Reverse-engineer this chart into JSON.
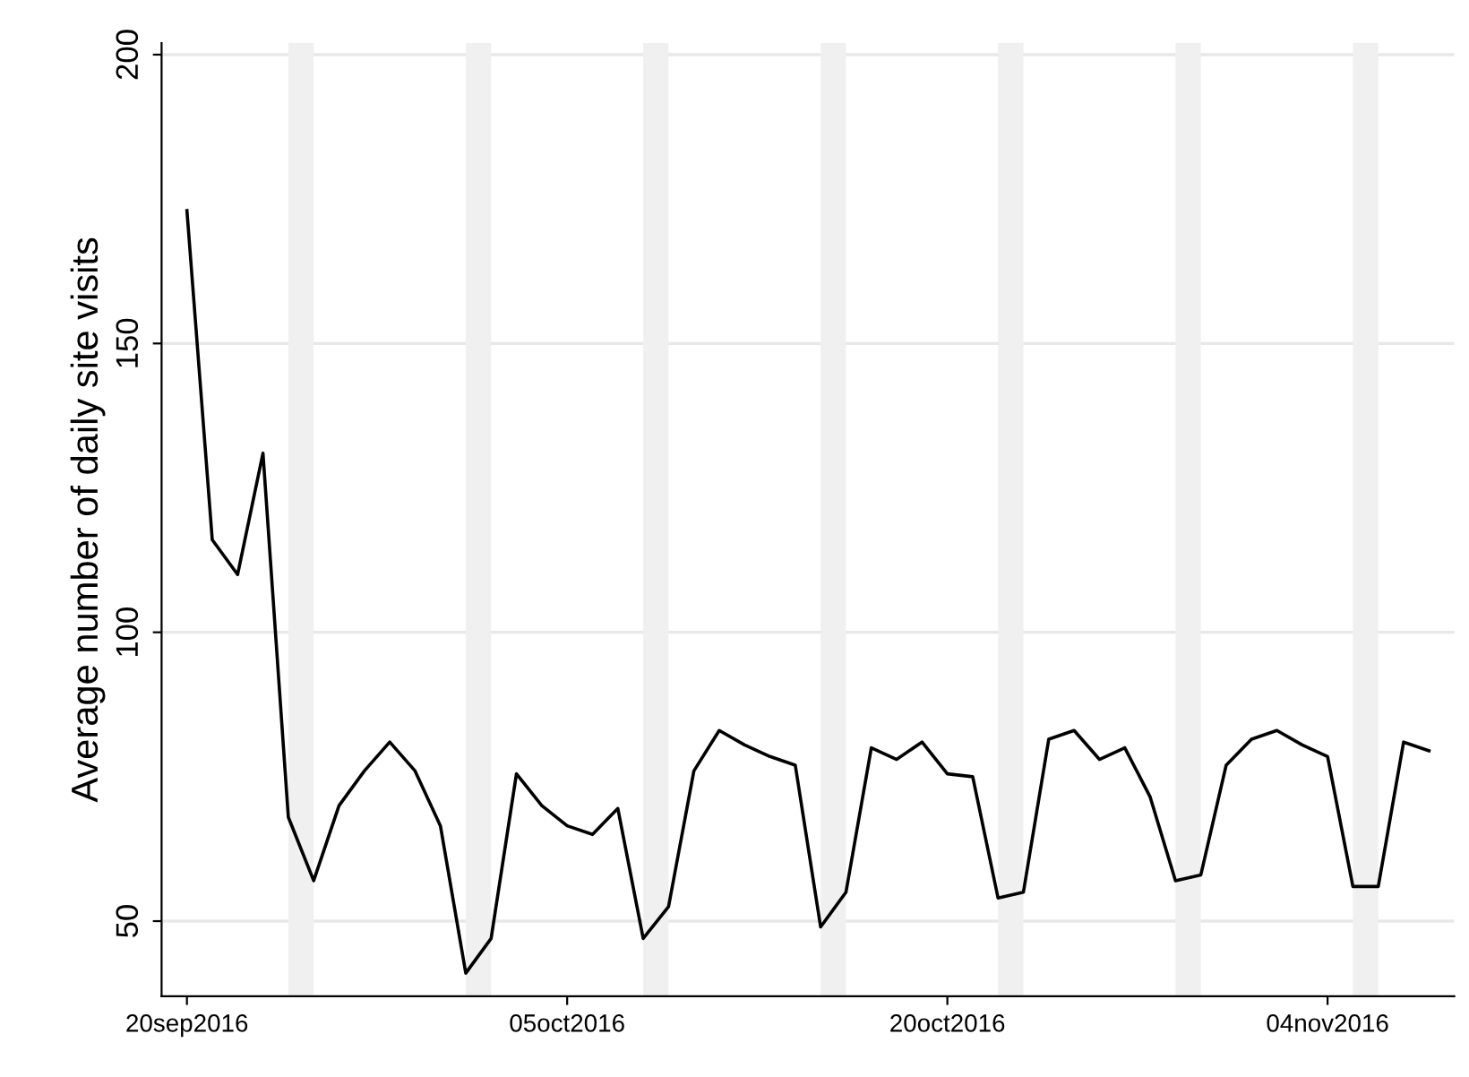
{
  "chart_data": {
    "type": "line",
    "ylabel": "Average number of daily site visits",
    "x": [
      "2016-09-20",
      "2016-09-21",
      "2016-09-22",
      "2016-09-23",
      "2016-09-24",
      "2016-09-25",
      "2016-09-26",
      "2016-09-27",
      "2016-09-28",
      "2016-09-29",
      "2016-09-30",
      "2016-10-01",
      "2016-10-02",
      "2016-10-03",
      "2016-10-04",
      "2016-10-05",
      "2016-10-06",
      "2016-10-07",
      "2016-10-08",
      "2016-10-09",
      "2016-10-10",
      "2016-10-11",
      "2016-10-12",
      "2016-10-13",
      "2016-10-14",
      "2016-10-15",
      "2016-10-16",
      "2016-10-17",
      "2016-10-18",
      "2016-10-19",
      "2016-10-20",
      "2016-10-21",
      "2016-10-22",
      "2016-10-23",
      "2016-10-24",
      "2016-10-25",
      "2016-10-26",
      "2016-10-27",
      "2016-10-28",
      "2016-10-29",
      "2016-10-30",
      "2016-10-31",
      "2016-11-01",
      "2016-11-02",
      "2016-11-03",
      "2016-11-04",
      "2016-11-05",
      "2016-11-06",
      "2016-11-07",
      "2016-11-08"
    ],
    "series": [
      {
        "color": "#000000",
        "values": [
          173,
          116,
          110,
          131,
          68,
          57,
          70,
          76,
          81,
          76,
          66.5,
          41,
          47,
          75.5,
          70,
          66.5,
          65,
          69.5,
          47,
          52.5,
          76,
          83,
          80.5,
          78.5,
          77,
          49,
          55,
          80,
          78,
          81,
          75.5,
          75,
          54,
          55,
          81.5,
          83,
          78,
          80,
          71.5,
          57,
          58,
          77,
          81.5,
          83,
          80.5,
          78.5,
          56,
          56,
          81,
          79.5
        ]
      }
    ],
    "bands": [
      {
        "axis": "x",
        "from": "2016-09-24",
        "to": "2016-09-25",
        "color": "#f0f0f0"
      },
      {
        "axis": "x",
        "from": "2016-10-01",
        "to": "2016-10-02",
        "color": "#f0f0f0"
      },
      {
        "axis": "x",
        "from": "2016-10-08",
        "to": "2016-10-09",
        "color": "#f0f0f0"
      },
      {
        "axis": "x",
        "from": "2016-10-15",
        "to": "2016-10-16",
        "color": "#f0f0f0"
      },
      {
        "axis": "x",
        "from": "2016-10-22",
        "to": "2016-10-23",
        "color": "#f0f0f0"
      },
      {
        "axis": "x",
        "from": "2016-10-29",
        "to": "2016-10-30",
        "color": "#f0f0f0"
      },
      {
        "axis": "x",
        "from": "2016-11-05",
        "to": "2016-11-06",
        "color": "#f0f0f0"
      }
    ],
    "xlim": [
      "2016-09-19",
      "2016-11-09"
    ],
    "xticks": [
      {
        "value": "2016-09-20",
        "label": "20sep2016"
      },
      {
        "value": "2016-10-05",
        "label": "05oct2016"
      },
      {
        "value": "2016-10-20",
        "label": "20oct2016"
      },
      {
        "value": "2016-11-04",
        "label": "04nov2016"
      }
    ],
    "ylim": [
      37,
      202
    ],
    "yticks": [
      50,
      100,
      150,
      200
    ],
    "grid": "y",
    "line_style": "solid",
    "marker": "none",
    "legend": false
  }
}
